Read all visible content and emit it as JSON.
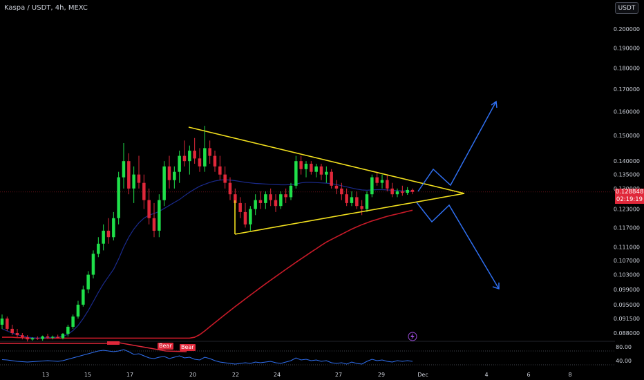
{
  "header": {
    "symbol_title": "Kaspa / USDT, 4h, MEXC",
    "currency_button": "USDT"
  },
  "price_tag": {
    "last": "0.128848",
    "countdown": "02:19:19"
  },
  "badges": {
    "bear_1": "Bear",
    "bear_2": "Bear"
  },
  "colors": {
    "bull": "#1fe04a",
    "bear": "#e0283a",
    "triangle": "#f2e01e",
    "projection": "#2f6ff0",
    "ma_slow": "#c81a28",
    "ma_fast": "#1a2a8c",
    "rsi": "#2f6ff0"
  },
  "chart_data": {
    "type": "candlestick",
    "price_axis": {
      "labels": [
        "0.200000",
        "0.190000",
        "0.180000",
        "0.170000",
        "0.160000",
        "0.150000",
        "0.140000",
        "0.135000",
        "0.130000",
        "0.123000",
        "0.117000",
        "0.111000",
        "0.107000",
        "0.103000",
        "0.099000",
        "0.095000",
        "0.091500",
        "0.088000"
      ],
      "scale": "log"
    },
    "time_axis": {
      "labels": [
        "13",
        "15",
        "17",
        "20",
        "22",
        "24",
        "27",
        "29",
        "Dec",
        "4",
        "6",
        "8"
      ]
    },
    "rsi_axis": {
      "labels": [
        "80.00",
        "40.00"
      ]
    },
    "candles": [
      [
        0.09,
        0.0925,
        0.089,
        0.0915
      ],
      [
        0.0915,
        0.092,
        0.0885,
        0.089
      ],
      [
        0.089,
        0.09,
        0.0875,
        0.088
      ],
      [
        0.088,
        0.089,
        0.087,
        0.0875
      ],
      [
        0.0875,
        0.088,
        0.0865,
        0.087
      ],
      [
        0.087,
        0.0875,
        0.086,
        0.0865
      ],
      [
        0.0865,
        0.087,
        0.0862,
        0.0868
      ],
      [
        0.0868,
        0.0872,
        0.0864,
        0.0866
      ],
      [
        0.0866,
        0.0874,
        0.0862,
        0.0872
      ],
      [
        0.0872,
        0.0878,
        0.0866,
        0.0869
      ],
      [
        0.0869,
        0.0874,
        0.0865,
        0.0871
      ],
      [
        0.0871,
        0.0876,
        0.0867,
        0.0868
      ],
      [
        0.0868,
        0.088,
        0.0865,
        0.0878
      ],
      [
        0.0878,
        0.09,
        0.0872,
        0.0895
      ],
      [
        0.0895,
        0.0925,
        0.089,
        0.092
      ],
      [
        0.092,
        0.096,
        0.0915,
        0.095
      ],
      [
        0.095,
        0.1,
        0.0945,
        0.099
      ],
      [
        0.099,
        0.104,
        0.098,
        0.103
      ],
      [
        0.103,
        0.11,
        0.102,
        0.109
      ],
      [
        0.109,
        0.114,
        0.108,
        0.112
      ],
      [
        0.112,
        0.118,
        0.11,
        0.116
      ],
      [
        0.116,
        0.12,
        0.112,
        0.114
      ],
      [
        0.114,
        0.122,
        0.113,
        0.12
      ],
      [
        0.12,
        0.136,
        0.118,
        0.134
      ],
      [
        0.134,
        0.147,
        0.13,
        0.14
      ],
      [
        0.14,
        0.143,
        0.128,
        0.13
      ],
      [
        0.13,
        0.138,
        0.125,
        0.135
      ],
      [
        0.135,
        0.142,
        0.13,
        0.132
      ],
      [
        0.132,
        0.135,
        0.123,
        0.126
      ],
      [
        0.126,
        0.13,
        0.118,
        0.12
      ],
      [
        0.12,
        0.125,
        0.114,
        0.116
      ],
      [
        0.116,
        0.128,
        0.114,
        0.126
      ],
      [
        0.126,
        0.14,
        0.124,
        0.138
      ],
      [
        0.138,
        0.142,
        0.13,
        0.133
      ],
      [
        0.133,
        0.138,
        0.13,
        0.136
      ],
      [
        0.136,
        0.144,
        0.132,
        0.142
      ],
      [
        0.142,
        0.148,
        0.138,
        0.14
      ],
      [
        0.14,
        0.146,
        0.135,
        0.144
      ],
      [
        0.144,
        0.149,
        0.139,
        0.141
      ],
      [
        0.141,
        0.145,
        0.136,
        0.138
      ],
      [
        0.138,
        0.154,
        0.136,
        0.145
      ],
      [
        0.145,
        0.148,
        0.139,
        0.142
      ],
      [
        0.142,
        0.144,
        0.136,
        0.138
      ],
      [
        0.138,
        0.142,
        0.133,
        0.135
      ],
      [
        0.135,
        0.138,
        0.13,
        0.132
      ],
      [
        0.132,
        0.134,
        0.126,
        0.128
      ],
      [
        0.128,
        0.13,
        0.123,
        0.125
      ],
      [
        0.125,
        0.127,
        0.12,
        0.122
      ],
      [
        0.122,
        0.125,
        0.117,
        0.118
      ],
      [
        0.118,
        0.124,
        0.116,
        0.123
      ],
      [
        0.123,
        0.128,
        0.121,
        0.126
      ],
      [
        0.126,
        0.129,
        0.123,
        0.125
      ],
      [
        0.125,
        0.129,
        0.123,
        0.128
      ],
      [
        0.128,
        0.13,
        0.124,
        0.126
      ],
      [
        0.126,
        0.128,
        0.122,
        0.124
      ],
      [
        0.124,
        0.129,
        0.123,
        0.128
      ],
      [
        0.128,
        0.13,
        0.125,
        0.127
      ],
      [
        0.127,
        0.132,
        0.126,
        0.131
      ],
      [
        0.131,
        0.142,
        0.13,
        0.14
      ],
      [
        0.14,
        0.142,
        0.135,
        0.137
      ],
      [
        0.137,
        0.14,
        0.134,
        0.139
      ],
      [
        0.139,
        0.14,
        0.135,
        0.136
      ],
      [
        0.136,
        0.139,
        0.134,
        0.138
      ],
      [
        0.138,
        0.139,
        0.133,
        0.135
      ],
      [
        0.135,
        0.138,
        0.132,
        0.136
      ],
      [
        0.136,
        0.137,
        0.13,
        0.131
      ],
      [
        0.131,
        0.133,
        0.128,
        0.13
      ],
      [
        0.13,
        0.132,
        0.126,
        0.128
      ],
      [
        0.128,
        0.13,
        0.124,
        0.125
      ],
      [
        0.125,
        0.129,
        0.124,
        0.127
      ],
      [
        0.127,
        0.129,
        0.123,
        0.124
      ],
      [
        0.124,
        0.126,
        0.121,
        0.123
      ],
      [
        0.123,
        0.129,
        0.122,
        0.128
      ],
      [
        0.128,
        0.135,
        0.127,
        0.134
      ],
      [
        0.134,
        0.136,
        0.131,
        0.132
      ],
      [
        0.132,
        0.135,
        0.13,
        0.133
      ],
      [
        0.133,
        0.135,
        0.129,
        0.13
      ],
      [
        0.13,
        0.132,
        0.127,
        0.128
      ],
      [
        0.128,
        0.13,
        0.127,
        0.129
      ],
      [
        0.129,
        0.131,
        0.1275,
        0.1285
      ],
      [
        0.1285,
        0.1305,
        0.1278,
        0.1295
      ],
      [
        0.1295,
        0.13,
        0.128,
        0.1288
      ]
    ],
    "ma_fast": [
      0.089,
      0.0885,
      0.088,
      0.0876,
      0.0873,
      0.087,
      0.0869,
      0.0868,
      0.0869,
      0.0869,
      0.087,
      0.087,
      0.0872,
      0.0877,
      0.0886,
      0.0898,
      0.0915,
      0.0935,
      0.0958,
      0.0982,
      0.1005,
      0.1025,
      0.1045,
      0.1075,
      0.111,
      0.114,
      0.1165,
      0.1185,
      0.12,
      0.121,
      0.1215,
      0.1222,
      0.1232,
      0.1242,
      0.1252,
      0.1262,
      0.1275,
      0.1287,
      0.1298,
      0.1308,
      0.1315,
      0.1322,
      0.1327,
      0.133,
      0.1331,
      0.133,
      0.1328,
      0.1325,
      0.1322,
      0.132,
      0.1318,
      0.1317,
      0.1316,
      0.1315,
      0.1314,
      0.1313,
      0.1313,
      0.1314,
      0.1316,
      0.132,
      0.1322,
      0.1322,
      0.1321,
      0.132,
      0.1319,
      0.1317,
      0.1314,
      0.131,
      0.1306,
      0.1302,
      0.1298,
      0.1295,
      0.1294,
      0.1295,
      0.1296,
      0.1296,
      0.1295,
      0.1294,
      0.1293,
      0.1292,
      0.1291,
      0.129
    ],
    "ma_slow": [
      0.087,
      0.087,
      0.087,
      0.0869,
      0.0869,
      0.0868,
      0.0868,
      0.0868,
      0.0868,
      0.0868,
      0.0868,
      0.0868,
      0.0868,
      0.0868,
      0.0868,
      0.0868,
      0.0868,
      0.0868,
      0.0868,
      0.0868,
      0.0868,
      0.0868,
      0.0868,
      0.0868,
      0.0868,
      0.0868,
      0.0868,
      0.0868,
      0.0868,
      0.0868,
      0.0868,
      0.0868,
      0.0868,
      0.0868,
      0.0868,
      0.0868,
      0.0868,
      0.0868,
      0.087,
      0.0876,
      0.0885,
      0.0895,
      0.0905,
      0.0915,
      0.0925,
      0.0935,
      0.0945,
      0.0955,
      0.0965,
      0.0975,
      0.0985,
      0.0995,
      0.1005,
      0.1015,
      0.1025,
      0.1035,
      0.1045,
      0.1055,
      0.1065,
      0.1075,
      0.1085,
      0.1095,
      0.1105,
      0.1115,
      0.1125,
      0.1133,
      0.1141,
      0.1149,
      0.1157,
      0.1165,
      0.1172,
      0.1179,
      0.1185,
      0.1191,
      0.1196,
      0.1201,
      0.1206,
      0.121,
      0.1214,
      0.1218,
      0.1222,
      0.1226
    ],
    "rsi": [
      55,
      54,
      52,
      50,
      49,
      48,
      49,
      50,
      51,
      52,
      51,
      50,
      52,
      56,
      60,
      64,
      68,
      72,
      76,
      80,
      82,
      80,
      78,
      80,
      84,
      78,
      70,
      72,
      66,
      60,
      58,
      62,
      64,
      58,
      62,
      66,
      60,
      62,
      56,
      54,
      62,
      58,
      52,
      48,
      46,
      44,
      42,
      44,
      46,
      44,
      48,
      46,
      48,
      50,
      46,
      44,
      48,
      52,
      60,
      54,
      56,
      52,
      54,
      50,
      52,
      46,
      44,
      46,
      42,
      48,
      44,
      42,
      50,
      56,
      52,
      54,
      50,
      48,
      52,
      50,
      52,
      50
    ],
    "triangle": {
      "upper": [
        [
          0.154,
          "apex-start"
        ],
        [
          0.1288,
          "apex"
        ]
      ],
      "lower": [
        [
          0.117,
          "base-start"
        ],
        [
          0.1288,
          "apex"
        ]
      ]
    },
    "projection": {
      "up_target": 0.164,
      "down_target": 0.099
    }
  }
}
